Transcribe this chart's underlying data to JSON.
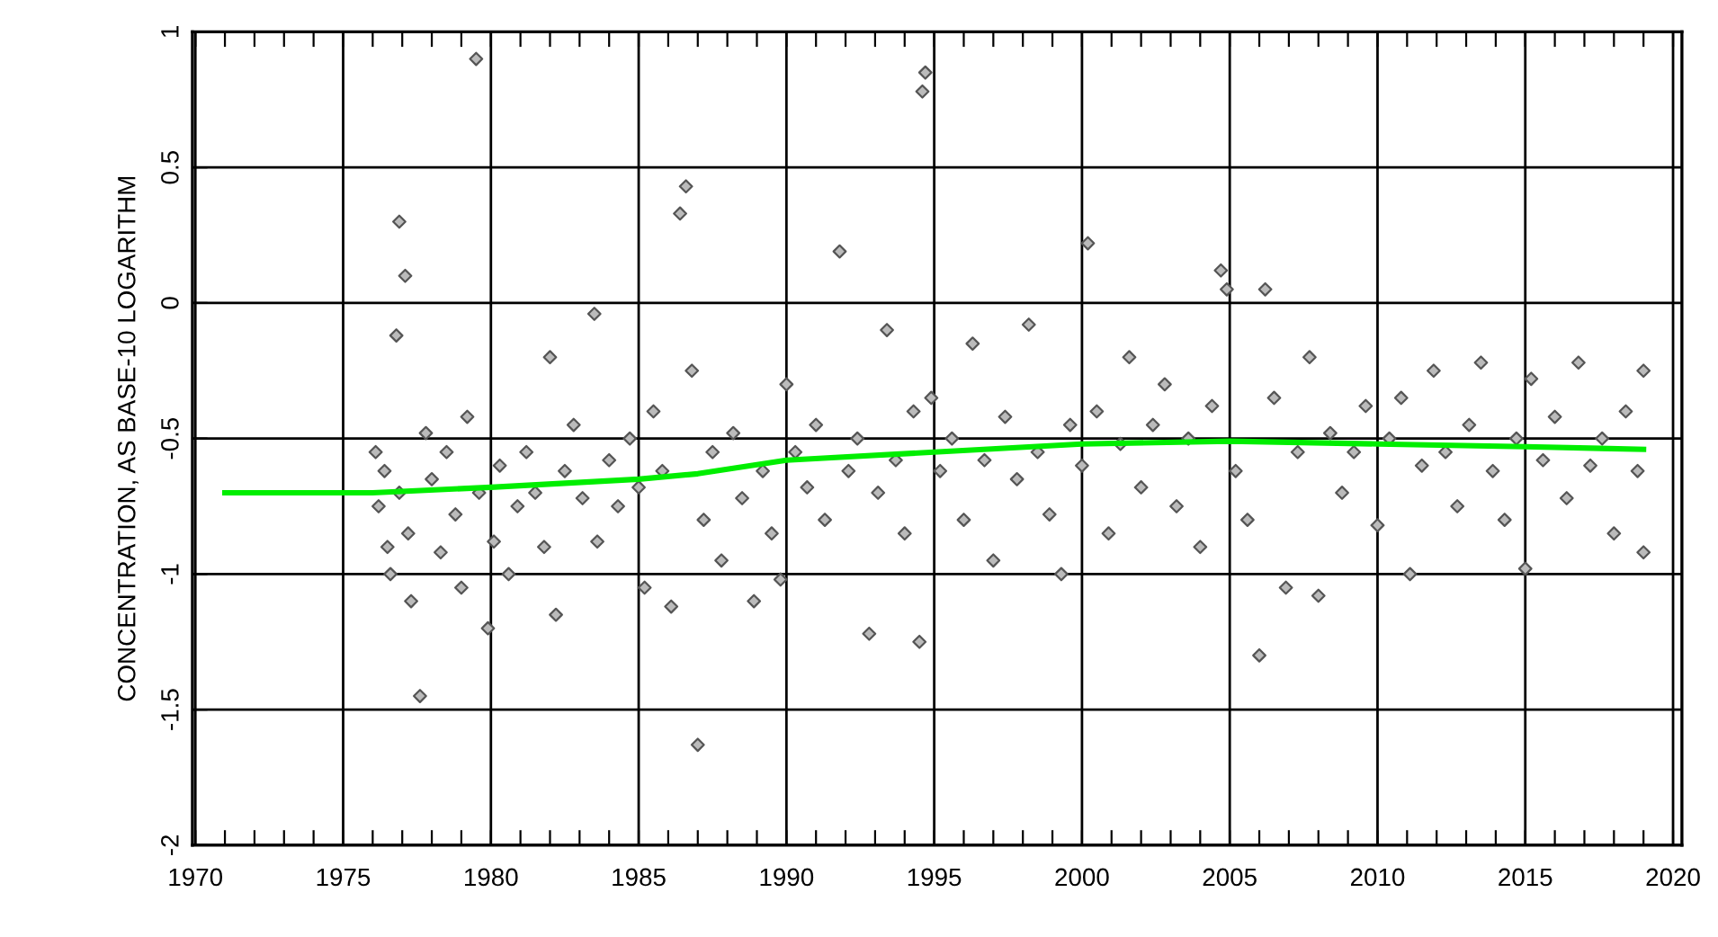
{
  "chart_data": {
    "type": "scatter",
    "ylabel": "CONCENTRATION, AS BASE-10 LOGARITHM",
    "xlim": [
      1969.9,
      2020.3
    ],
    "ylim": [
      -2,
      1
    ],
    "xticks": [
      1970,
      {
        "value": 1971,
        "label": null
      },
      {
        "value": 1972,
        "label": null
      },
      {
        "value": 1973,
        "label": null
      },
      {
        "value": 1974,
        "label": null
      },
      1975,
      {
        "value": 1976,
        "label": null
      },
      {
        "value": 1977,
        "label": null
      },
      {
        "value": 1978,
        "label": null
      },
      {
        "value": 1979,
        "label": null
      },
      1980,
      {
        "value": 1981,
        "label": null
      },
      {
        "value": 1982,
        "label": null
      },
      {
        "value": 1983,
        "label": null
      },
      {
        "value": 1984,
        "label": null
      },
      1985,
      {
        "value": 1986,
        "label": null
      },
      {
        "value": 1987,
        "label": null
      },
      {
        "value": 1988,
        "label": null
      },
      {
        "value": 1989,
        "label": null
      },
      1990,
      {
        "value": 1991,
        "label": null
      },
      {
        "value": 1992,
        "label": null
      },
      {
        "value": 1993,
        "label": null
      },
      {
        "value": 1994,
        "label": null
      },
      1995,
      {
        "value": 1996,
        "label": null
      },
      {
        "value": 1997,
        "label": null
      },
      {
        "value": 1998,
        "label": null
      },
      {
        "value": 1999,
        "label": null
      },
      2000,
      {
        "value": 2001,
        "label": null
      },
      {
        "value": 2002,
        "label": null
      },
      {
        "value": 2003,
        "label": null
      },
      {
        "value": 2004,
        "label": null
      },
      2005,
      {
        "value": 2006,
        "label": null
      },
      {
        "value": 2007,
        "label": null
      },
      {
        "value": 2008,
        "label": null
      },
      {
        "value": 2009,
        "label": null
      },
      2010,
      {
        "value": 2011,
        "label": null
      },
      {
        "value": 2012,
        "label": null
      },
      {
        "value": 2013,
        "label": null
      },
      {
        "value": 2014,
        "label": null
      },
      2015,
      {
        "value": 2016,
        "label": null
      },
      {
        "value": 2017,
        "label": null
      },
      {
        "value": 2018,
        "label": null
      },
      {
        "value": 2019,
        "label": null
      },
      2020
    ],
    "yticks": [
      -2,
      -1.5,
      -1,
      -0.5,
      0,
      0.5,
      1
    ],
    "grid": true,
    "marker": "diamond",
    "series": [
      {
        "color": "#555555",
        "x": [
          1976.1,
          1976.2,
          1976.4,
          1976.5,
          1976.6,
          1976.8,
          1976.9,
          1976.9,
          1977.1,
          1977.2,
          1977.3,
          1977.6,
          1977.8,
          1978.0,
          1978.3,
          1978.5,
          1978.8,
          1979.0,
          1979.2,
          1979.5,
          1979.6,
          1979.9,
          1980.1,
          1980.3,
          1980.6,
          1980.9,
          1981.2,
          1981.5,
          1981.8,
          1982.0,
          1982.2,
          1982.5,
          1982.8,
          1983.1,
          1983.5,
          1983.6,
          1984.0,
          1984.3,
          1984.7,
          1985.0,
          1985.2,
          1985.5,
          1985.8,
          1986.1,
          1986.4,
          1986.6,
          1986.8,
          1987.0,
          1987.2,
          1987.5,
          1987.8,
          1988.2,
          1988.5,
          1988.9,
          1989.2,
          1989.5,
          1989.8,
          1990.0,
          1990.3,
          1990.7,
          1991.0,
          1991.3,
          1991.8,
          1992.1,
          1992.4,
          1992.8,
          1993.1,
          1993.4,
          1993.7,
          1994.0,
          1994.3,
          1994.5,
          1994.6,
          1994.7,
          1994.9,
          1995.2,
          1995.6,
          1996.0,
          1996.3,
          1996.7,
          1997.0,
          1997.4,
          1997.8,
          1998.2,
          1998.5,
          1998.9,
          1999.3,
          1999.6,
          2000.0,
          2000.2,
          2000.5,
          2000.9,
          2001.3,
          2001.6,
          2002.0,
          2002.4,
          2002.8,
          2003.2,
          2003.6,
          2004.0,
          2004.4,
          2004.7,
          2004.9,
          2005.2,
          2005.6,
          2006.0,
          2006.2,
          2006.5,
          2006.9,
          2007.3,
          2007.7,
          2008.0,
          2008.4,
          2008.8,
          2009.2,
          2009.6,
          2010.0,
          2010.4,
          2010.8,
          2011.1,
          2011.5,
          2011.9,
          2012.3,
          2012.7,
          2013.1,
          2013.5,
          2013.9,
          2014.3,
          2014.7,
          2015.0,
          2015.2,
          2015.6,
          2016.0,
          2016.4,
          2016.8,
          2017.2,
          2017.6,
          2018.0,
          2018.4,
          2018.8,
          2019.0,
          2019.0
        ],
        "values": [
          -0.55,
          -0.75,
          -0.62,
          -0.9,
          -1.0,
          -0.12,
          -0.7,
          0.3,
          0.1,
          -0.85,
          -1.1,
          -1.45,
          -0.48,
          -0.65,
          -0.92,
          -0.55,
          -0.78,
          -1.05,
          -0.42,
          0.9,
          -0.7,
          -1.2,
          -0.88,
          -0.6,
          -1.0,
          -0.75,
          -0.55,
          -0.7,
          -0.9,
          -0.2,
          -1.15,
          -0.62,
          -0.45,
          -0.72,
          -0.04,
          -0.88,
          -0.58,
          -0.75,
          -0.5,
          -0.68,
          -1.05,
          -0.4,
          -0.62,
          -1.12,
          0.33,
          0.43,
          -0.25,
          -1.63,
          -0.8,
          -0.55,
          -0.95,
          -0.48,
          -0.72,
          -1.1,
          -0.62,
          -0.85,
          -1.02,
          -0.3,
          -0.55,
          -0.68,
          -0.45,
          -0.8,
          0.19,
          -0.62,
          -0.5,
          -1.22,
          -0.7,
          -0.1,
          -0.58,
          -0.85,
          -0.4,
          -1.25,
          0.78,
          0.85,
          -0.35,
          -0.62,
          -0.5,
          -0.8,
          -0.15,
          -0.58,
          -0.95,
          -0.42,
          -0.65,
          -0.08,
          -0.55,
          -0.78,
          -1.0,
          -0.45,
          -0.6,
          0.22,
          -0.4,
          -0.85,
          -0.52,
          -0.2,
          -0.68,
          -0.45,
          -0.3,
          -0.75,
          -0.5,
          -0.9,
          -0.38,
          0.12,
          0.05,
          -0.62,
          -0.8,
          -1.3,
          0.05,
          -0.35,
          -1.05,
          -0.55,
          -0.2,
          -1.08,
          -0.48,
          -0.7,
          -0.55,
          -0.38,
          -0.82,
          -0.5,
          -0.35,
          -1.0,
          -0.6,
          -0.25,
          -0.55,
          -0.75,
          -0.45,
          -0.22,
          -0.62,
          -0.8,
          -0.5,
          -0.98,
          -0.28,
          -0.58,
          -0.42,
          -0.72,
          -0.22,
          -0.6,
          -0.5,
          -0.85,
          -0.4,
          -0.62,
          -0.25,
          -0.92
        ]
      },
      {
        "type": "line",
        "color": "#00ee00",
        "marker": "none",
        "x": [
          1971,
          1976,
          1980,
          1985,
          1987,
          1990,
          1995,
          2000,
          2005,
          2010,
          2015,
          2019
        ],
        "values": [
          -0.7,
          -0.7,
          -0.68,
          -0.65,
          -0.63,
          -0.58,
          -0.55,
          -0.52,
          -0.51,
          -0.52,
          -0.53,
          -0.54
        ]
      }
    ]
  }
}
